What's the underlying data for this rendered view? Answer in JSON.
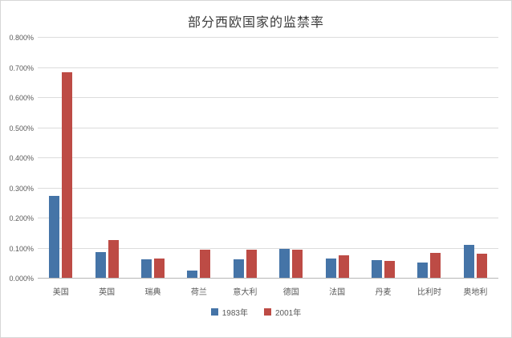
{
  "chart_data": {
    "type": "bar",
    "title": "部分西欧国家的监禁率",
    "categories": [
      "美国",
      "英国",
      "瑞典",
      "荷兰",
      "意大利",
      "德国",
      "法国",
      "丹麦",
      "比利时",
      "奥地利"
    ],
    "series": [
      {
        "name": "1983年",
        "color": "#4574a7",
        "values": [
          0.274,
          0.087,
          0.065,
          0.028,
          0.065,
          0.1,
          0.067,
          0.062,
          0.054,
          0.112
        ]
      },
      {
        "name": "2001年",
        "color": "#bd4b45",
        "values": [
          0.685,
          0.127,
          0.068,
          0.095,
          0.095,
          0.097,
          0.077,
          0.059,
          0.085,
          0.084
        ]
      }
    ],
    "unit": "%",
    "xlabel": "",
    "ylabel": "",
    "ylim": [
      0,
      0.8
    ],
    "y_ticks": [
      "0.000%",
      "0.100%",
      "0.200%",
      "0.300%",
      "0.400%",
      "0.500%",
      "0.600%",
      "0.700%",
      "0.800%"
    ],
    "grid": true,
    "legend_position": "bottom"
  }
}
